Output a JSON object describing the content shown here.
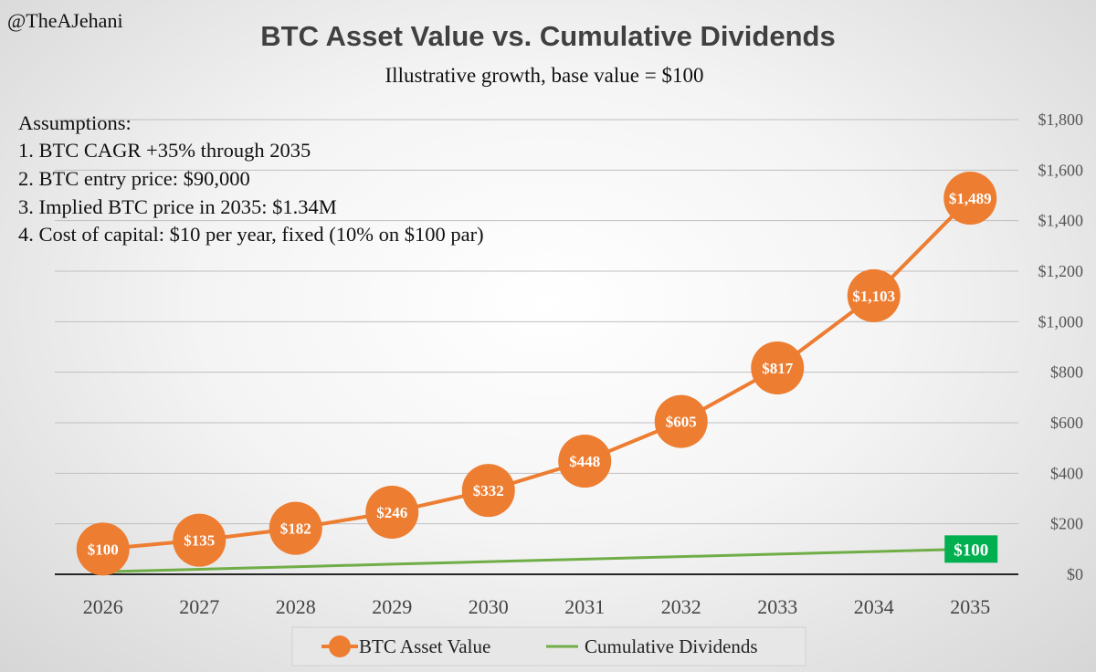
{
  "handle": "@TheAJehani",
  "assumptions": [
    "Assumptions:",
    "1. BTC CAGR +35% through 2035",
    "2. BTC entry price: $90,000",
    "3. Implied BTC price in 2035: $1.34M",
    "4. Cost of capital: $10 per year, fixed (10% on $100 par)"
  ],
  "colors": {
    "btc": "#ED7D31",
    "dividends": "#70AD47",
    "dividend_label_bg": "#00B050",
    "grid": "#bfbfbf",
    "axis": "#262626"
  },
  "chart_data": {
    "type": "line",
    "title": "BTC Asset Value vs. Cumulative Dividends",
    "subtitle": "Illustrative growth, base value = $100",
    "x": [
      "2026",
      "2027",
      "2028",
      "2029",
      "2030",
      "2031",
      "2032",
      "2033",
      "2034",
      "2035"
    ],
    "series": [
      {
        "name": "BTC Asset Value",
        "values": [
          100,
          135,
          182,
          246,
          332,
          448,
          605,
          817,
          1103,
          1489
        ],
        "labels": [
          "$100",
          "$135",
          "$182",
          "$246",
          "$332",
          "$448",
          "$605",
          "$817",
          "$1,103",
          "$1,489"
        ]
      },
      {
        "name": "Cumulative Dividends",
        "values": [
          10,
          20,
          30,
          40,
          50,
          60,
          70,
          80,
          90,
          100
        ],
        "end_label": "$100"
      }
    ],
    "ylim": [
      0,
      1800
    ],
    "yticks": [
      0,
      200,
      400,
      600,
      800,
      1000,
      1200,
      1400,
      1600,
      1800
    ],
    "ytick_labels": [
      "$0",
      "$200",
      "$400",
      "$600",
      "$800",
      "$1,000",
      "$1,200",
      "$1,400",
      "$1,600",
      "$1,800"
    ],
    "y_axis_side": "right",
    "grid": true,
    "legend": "bottom"
  }
}
